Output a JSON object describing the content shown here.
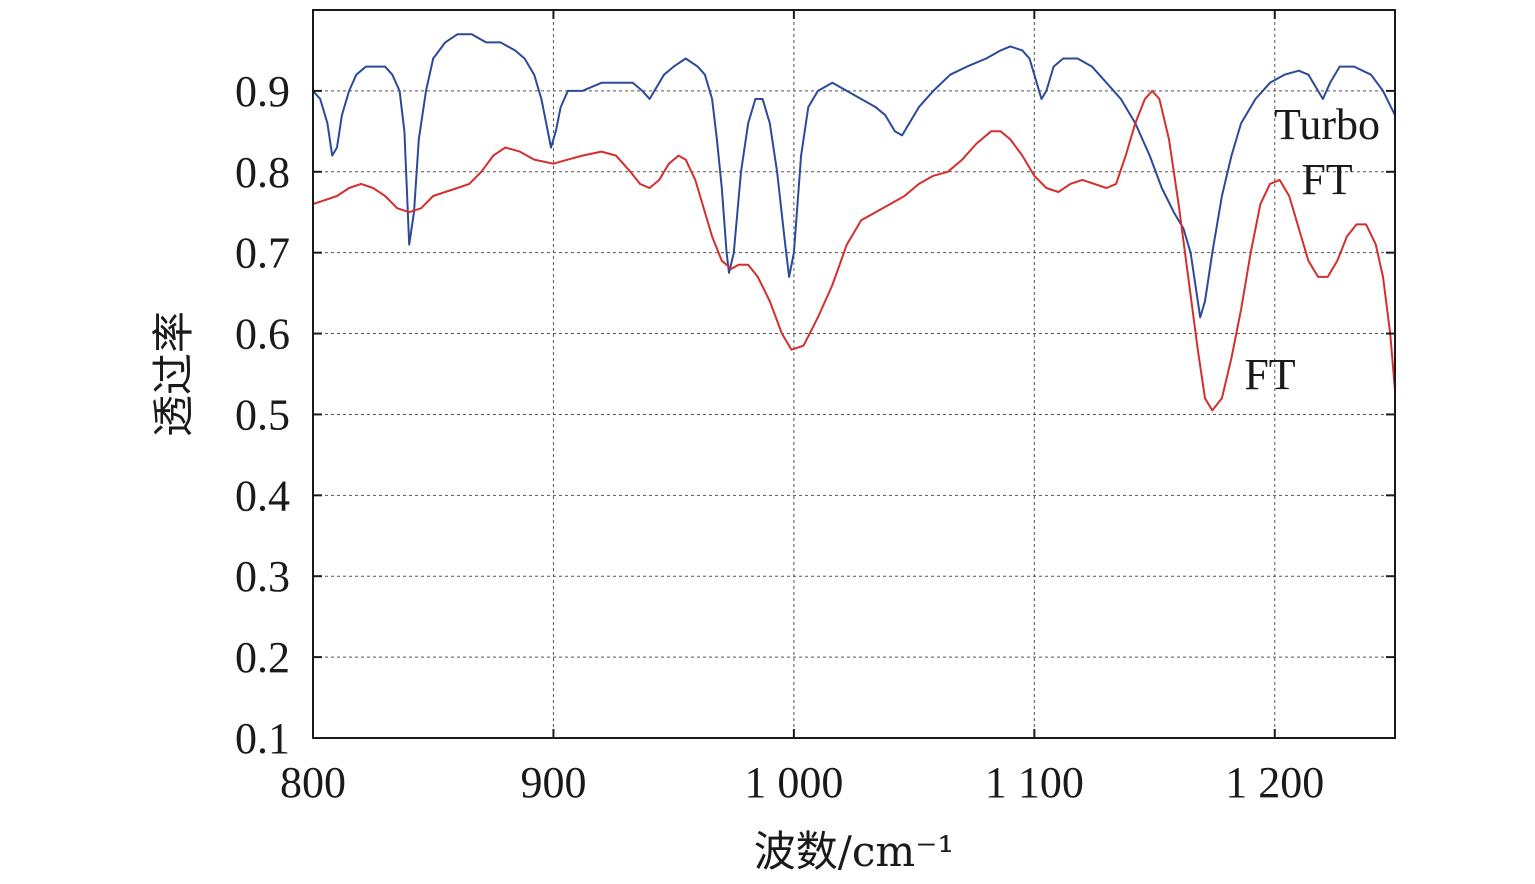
{
  "chart_data": {
    "type": "line",
    "title": "",
    "xlabel": "波数/cm⁻¹",
    "ylabel": "透过率",
    "xlim": [
      800,
      1250
    ],
    "ylim": [
      0.1,
      1.0
    ],
    "grid": true,
    "x_ticks": [
      800,
      900,
      1000,
      1100,
      1200
    ],
    "x_tick_labels": [
      "800",
      "900",
      "1 000",
      "1 100",
      "1 200"
    ],
    "y_ticks": [
      0.1,
      0.2,
      0.3,
      0.4,
      0.5,
      0.6,
      0.7,
      0.8,
      0.9
    ],
    "y_tick_labels": [
      "0.1",
      "0.2",
      "0.3",
      "0.4",
      "0.5",
      "0.6",
      "0.7",
      "0.8",
      "0.9"
    ],
    "series": [
      {
        "name": "Turbo FT",
        "color": "#2b4a9a",
        "points": [
          [
            800,
            0.9
          ],
          [
            803,
            0.89
          ],
          [
            806,
            0.86
          ],
          [
            808,
            0.82
          ],
          [
            810,
            0.83
          ],
          [
            812,
            0.87
          ],
          [
            815,
            0.9
          ],
          [
            818,
            0.92
          ],
          [
            822,
            0.93
          ],
          [
            826,
            0.93
          ],
          [
            830,
            0.93
          ],
          [
            833,
            0.92
          ],
          [
            836,
            0.9
          ],
          [
            838,
            0.85
          ],
          [
            840,
            0.71
          ],
          [
            842,
            0.75
          ],
          [
            844,
            0.84
          ],
          [
            847,
            0.9
          ],
          [
            850,
            0.94
          ],
          [
            855,
            0.96
          ],
          [
            860,
            0.97
          ],
          [
            866,
            0.97
          ],
          [
            872,
            0.96
          ],
          [
            878,
            0.96
          ],
          [
            884,
            0.95
          ],
          [
            888,
            0.94
          ],
          [
            892,
            0.92
          ],
          [
            895,
            0.89
          ],
          [
            897,
            0.86
          ],
          [
            899,
            0.83
          ],
          [
            901,
            0.85
          ],
          [
            903,
            0.88
          ],
          [
            906,
            0.9
          ],
          [
            912,
            0.9
          ],
          [
            920,
            0.91
          ],
          [
            928,
            0.91
          ],
          [
            933,
            0.91
          ],
          [
            937,
            0.9
          ],
          [
            940,
            0.89
          ],
          [
            942,
            0.9
          ],
          [
            946,
            0.92
          ],
          [
            950,
            0.93
          ],
          [
            955,
            0.94
          ],
          [
            960,
            0.93
          ],
          [
            963,
            0.92
          ],
          [
            966,
            0.89
          ],
          [
            968,
            0.84
          ],
          [
            970,
            0.78
          ],
          [
            972,
            0.7
          ],
          [
            973,
            0.675
          ],
          [
            975,
            0.7
          ],
          [
            978,
            0.8
          ],
          [
            981,
            0.86
          ],
          [
            984,
            0.89
          ],
          [
            987,
            0.89
          ],
          [
            990,
            0.86
          ],
          [
            993,
            0.8
          ],
          [
            996,
            0.72
          ],
          [
            998,
            0.67
          ],
          [
            1000,
            0.7
          ],
          [
            1003,
            0.82
          ],
          [
            1006,
            0.88
          ],
          [
            1010,
            0.9
          ],
          [
            1016,
            0.91
          ],
          [
            1022,
            0.9
          ],
          [
            1028,
            0.89
          ],
          [
            1034,
            0.88
          ],
          [
            1038,
            0.87
          ],
          [
            1042,
            0.85
          ],
          [
            1045,
            0.845
          ],
          [
            1048,
            0.86
          ],
          [
            1052,
            0.88
          ],
          [
            1058,
            0.9
          ],
          [
            1065,
            0.92
          ],
          [
            1072,
            0.93
          ],
          [
            1080,
            0.94
          ],
          [
            1086,
            0.95
          ],
          [
            1090,
            0.955
          ],
          [
            1095,
            0.95
          ],
          [
            1098,
            0.94
          ],
          [
            1101,
            0.91
          ],
          [
            1103,
            0.89
          ],
          [
            1105,
            0.9
          ],
          [
            1108,
            0.93
          ],
          [
            1112,
            0.94
          ],
          [
            1118,
            0.94
          ],
          [
            1124,
            0.93
          ],
          [
            1130,
            0.91
          ],
          [
            1136,
            0.89
          ],
          [
            1142,
            0.86
          ],
          [
            1148,
            0.82
          ],
          [
            1153,
            0.78
          ],
          [
            1158,
            0.75
          ],
          [
            1162,
            0.73
          ],
          [
            1165,
            0.7
          ],
          [
            1167,
            0.66
          ],
          [
            1169,
            0.62
          ],
          [
            1171,
            0.64
          ],
          [
            1174,
            0.7
          ],
          [
            1178,
            0.77
          ],
          [
            1182,
            0.82
          ],
          [
            1186,
            0.86
          ],
          [
            1192,
            0.89
          ],
          [
            1198,
            0.91
          ],
          [
            1204,
            0.92
          ],
          [
            1210,
            0.925
          ],
          [
            1214,
            0.92
          ],
          [
            1218,
            0.9
          ],
          [
            1220,
            0.89
          ],
          [
            1223,
            0.91
          ],
          [
            1227,
            0.93
          ],
          [
            1233,
            0.93
          ],
          [
            1240,
            0.92
          ],
          [
            1245,
            0.9
          ],
          [
            1250,
            0.87
          ]
        ]
      },
      {
        "name": "FT",
        "color": "#d42e2e",
        "points": [
          [
            800,
            0.76
          ],
          [
            805,
            0.765
          ],
          [
            810,
            0.77
          ],
          [
            815,
            0.78
          ],
          [
            820,
            0.785
          ],
          [
            825,
            0.78
          ],
          [
            830,
            0.77
          ],
          [
            835,
            0.755
          ],
          [
            840,
            0.75
          ],
          [
            845,
            0.755
          ],
          [
            850,
            0.77
          ],
          [
            855,
            0.775
          ],
          [
            860,
            0.78
          ],
          [
            865,
            0.785
          ],
          [
            870,
            0.8
          ],
          [
            875,
            0.82
          ],
          [
            880,
            0.83
          ],
          [
            886,
            0.825
          ],
          [
            892,
            0.815
          ],
          [
            900,
            0.81
          ],
          [
            906,
            0.815
          ],
          [
            912,
            0.82
          ],
          [
            920,
            0.825
          ],
          [
            926,
            0.82
          ],
          [
            932,
            0.8
          ],
          [
            936,
            0.785
          ],
          [
            940,
            0.78
          ],
          [
            944,
            0.79
          ],
          [
            948,
            0.81
          ],
          [
            952,
            0.82
          ],
          [
            955,
            0.815
          ],
          [
            959,
            0.79
          ],
          [
            962,
            0.76
          ],
          [
            966,
            0.72
          ],
          [
            970,
            0.69
          ],
          [
            974,
            0.68
          ],
          [
            977,
            0.685
          ],
          [
            981,
            0.685
          ],
          [
            985,
            0.67
          ],
          [
            990,
            0.64
          ],
          [
            995,
            0.6
          ],
          [
            999,
            0.58
          ],
          [
            1004,
            0.585
          ],
          [
            1010,
            0.62
          ],
          [
            1016,
            0.66
          ],
          [
            1022,
            0.71
          ],
          [
            1028,
            0.74
          ],
          [
            1034,
            0.75
          ],
          [
            1040,
            0.76
          ],
          [
            1046,
            0.77
          ],
          [
            1052,
            0.785
          ],
          [
            1058,
            0.795
          ],
          [
            1064,
            0.8
          ],
          [
            1070,
            0.815
          ],
          [
            1076,
            0.835
          ],
          [
            1082,
            0.85
          ],
          [
            1086,
            0.85
          ],
          [
            1090,
            0.84
          ],
          [
            1095,
            0.82
          ],
          [
            1100,
            0.795
          ],
          [
            1105,
            0.78
          ],
          [
            1110,
            0.775
          ],
          [
            1115,
            0.785
          ],
          [
            1120,
            0.79
          ],
          [
            1125,
            0.785
          ],
          [
            1130,
            0.78
          ],
          [
            1134,
            0.785
          ],
          [
            1138,
            0.82
          ],
          [
            1142,
            0.86
          ],
          [
            1146,
            0.89
          ],
          [
            1149,
            0.9
          ],
          [
            1152,
            0.89
          ],
          [
            1156,
            0.84
          ],
          [
            1160,
            0.76
          ],
          [
            1164,
            0.67
          ],
          [
            1168,
            0.58
          ],
          [
            1171,
            0.52
          ],
          [
            1174,
            0.505
          ],
          [
            1178,
            0.52
          ],
          [
            1182,
            0.57
          ],
          [
            1186,
            0.63
          ],
          [
            1190,
            0.7
          ],
          [
            1194,
            0.76
          ],
          [
            1198,
            0.785
          ],
          [
            1202,
            0.79
          ],
          [
            1206,
            0.77
          ],
          [
            1210,
            0.73
          ],
          [
            1214,
            0.69
          ],
          [
            1218,
            0.67
          ],
          [
            1222,
            0.67
          ],
          [
            1226,
            0.69
          ],
          [
            1230,
            0.72
          ],
          [
            1234,
            0.735
          ],
          [
            1238,
            0.735
          ],
          [
            1242,
            0.71
          ],
          [
            1245,
            0.67
          ],
          [
            1248,
            0.6
          ],
          [
            1250,
            0.53
          ]
        ]
      }
    ],
    "annotations": [
      {
        "text": "Turbo",
        "near_series": "Turbo FT",
        "placement": "right"
      },
      {
        "text": "FT",
        "near_series": "Turbo FT",
        "placement": "right"
      },
      {
        "text": "FT",
        "near_series": "FT",
        "placement": "right"
      }
    ]
  }
}
